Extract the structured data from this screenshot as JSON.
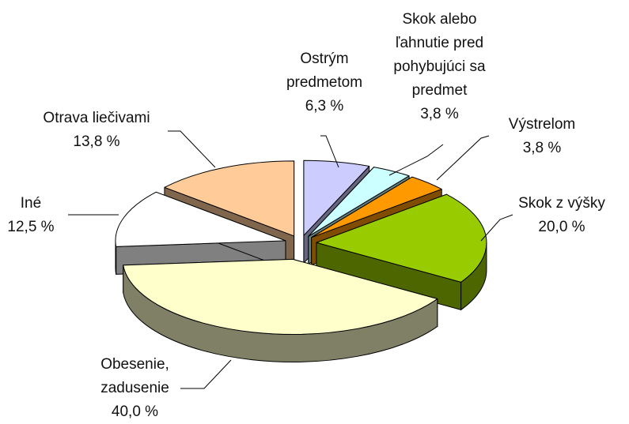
{
  "chart_data": {
    "type": "pie",
    "categories": [
      "Ostrým predmetom",
      "Skok alebo ľahnutie pred pohybujúci sa predmet",
      "Výstrelom",
      "Skok z výšky",
      "Obesenie, zadusenie",
      "Iné",
      "Otrava liečivami"
    ],
    "values": [
      6.3,
      3.8,
      3.8,
      20.0,
      40.0,
      12.5,
      13.8
    ],
    "value_labels": [
      "6,3 %",
      "3,8 %",
      "3,8 %",
      "20,0 %",
      "40,0 %",
      "12,5 %",
      "13,8 %"
    ],
    "colors": [
      "#ccccff",
      "#ccffff",
      "#ff9900",
      "#99cc00",
      "#ffffcc",
      "#ffffff",
      "#ffcc99"
    ]
  }
}
